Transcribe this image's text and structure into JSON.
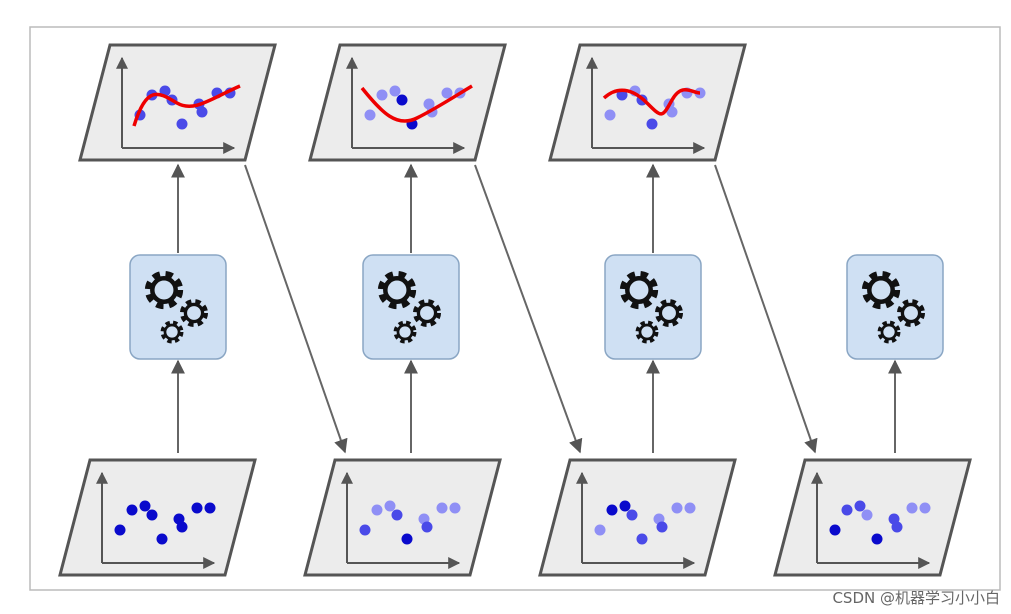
{
  "watermark": "CSDN @机器学习小小白"
}
